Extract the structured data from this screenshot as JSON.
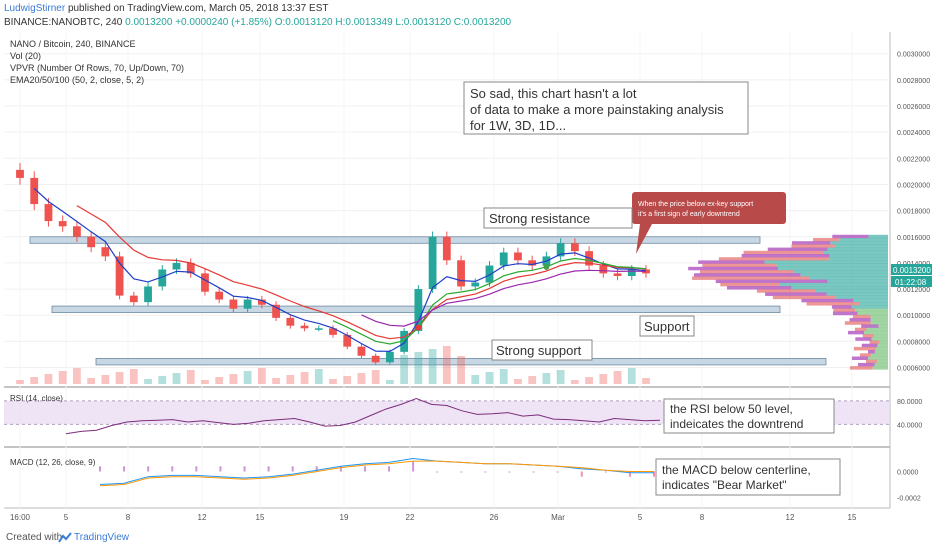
{
  "header": {
    "author": "LudwigStirner",
    "published": "published on TradingView.com, March 05, 2018 13:37 EST",
    "symbol": "BINANCE:NANOBTC, 240",
    "price": "0.0013200",
    "change": "+0.0000240 (+1.85%)",
    "ohlc": "O:0.0013120 H:0.0013349 L:0.0013120 C:0.0013200"
  },
  "legend": {
    "title": "NANO / Bitcoin, 240, BINANCE",
    "vol": "Vol (20)",
    "vpvr": "VPVR (Number Of Rows, 70, Up/Down, 70)",
    "ema": "EMA20/50/100 (50, 2, close, 5, 2)"
  },
  "annotations": {
    "note_line1": "So sad, this chart hasn't a lot",
    "note_line2": "of data to make a more painstaking analysis",
    "note_line3": "for 1W, 3D, 1D...",
    "callout_line1": "When the price below ex-key support",
    "callout_line2": "it's a first sign of early downtrend",
    "strong_resistance": "Strong resistance",
    "support": "Support",
    "strong_support": "Strong support",
    "rsi_note_line1": "the RSI below 50 level,",
    "rsi_note_line2": "indeicates the downtrend",
    "macd_note_line1": "the MACD below centerline,",
    "macd_note_line2": "indicates \"Bear Market\""
  },
  "panels": {
    "rsi_label": "RSI (14, close)",
    "macd_label": "MACD (12, 26, close, 9)"
  },
  "price_badges": {
    "current": "0.0013200",
    "timer": "01:22:08"
  },
  "footer": {
    "created": "Created with",
    "brand": "TradingView"
  },
  "colors": {
    "up": "#26a69a",
    "down": "#ef5350",
    "ema_fast": "#1e3ec8",
    "ema_mid": "#2aa830",
    "ema_slow": "#e53935",
    "ema_long": "#9c27b0",
    "macd": "#2196f3",
    "signal": "#ff9800",
    "rsi": "#7b2d7b",
    "zone": "#c7d7e4",
    "callout": "#b94a4a"
  },
  "chart_data": {
    "type": "line",
    "title": "NANO / Bitcoin, 240, BINANCE",
    "x_ticks": [
      "16:00",
      "5",
      "8",
      "12",
      "15",
      "19",
      "22",
      "26",
      "Mar",
      "5",
      "8",
      "12",
      "15"
    ],
    "price_axis": {
      "ticks": [
        "0.0030000",
        "0.0028000",
        "0.0026000",
        "0.0024000",
        "0.0022000",
        "0.0020000",
        "0.0018000",
        "0.0016000",
        "0.0014000",
        "0.0012000",
        "0.0010000",
        "0.0008000",
        "0.0006000"
      ],
      "ylim": [
        0.00052,
        0.00312
      ]
    },
    "close_prices": [
      0.00205,
      0.00185,
      0.00172,
      0.00168,
      0.0016,
      0.00152,
      0.00145,
      0.00115,
      0.0011,
      0.00122,
      0.00135,
      0.0014,
      0.00132,
      0.00118,
      0.00112,
      0.00105,
      0.00112,
      0.00108,
      0.00098,
      0.00092,
      0.0009,
      0.0009,
      0.00085,
      0.00076,
      0.00069,
      0.00064,
      0.00072,
      0.00088,
      0.0012,
      0.0016,
      0.00142,
      0.00122,
      0.00125,
      0.00138,
      0.00148,
      0.00142,
      0.00138,
      0.00145,
      0.00155,
      0.00149,
      0.00138,
      0.00132,
      0.0013,
      0.00135,
      0.00132
    ],
    "zones": [
      {
        "name": "Strong resistance",
        "low": 0.00155,
        "high": 0.0016
      },
      {
        "name": "Support",
        "low": 0.00102,
        "high": 0.00107
      },
      {
        "name": "Strong support",
        "low": 0.00062,
        "high": 0.00067
      }
    ],
    "rsi": {
      "ticks": [
        "80.0000",
        "40.0000"
      ],
      "ylim": [
        10,
        95
      ],
      "values": [
        24,
        28,
        30,
        38,
        44,
        46,
        47,
        48,
        44,
        46,
        43,
        40,
        42,
        46,
        48,
        50,
        44,
        37,
        38,
        44,
        55,
        66,
        74,
        84,
        74,
        72,
        63,
        57,
        58,
        60,
        54,
        56,
        49,
        48,
        46,
        44,
        50,
        48,
        46,
        47
      ]
    },
    "macd": {
      "ticks": [
        "0.0000",
        "-0.0002"
      ],
      "ylim": [
        -0.00025,
        0.00015
      ],
      "macd": [
        -0.0001,
        -9e-05,
        -4e-05,
        -3e-05,
        -3e-05,
        -4e-05,
        -5e-05,
        -4e-05,
        -2e-05,
        1e-05,
        4e-05,
        6e-05,
        7e-05,
        0.0001,
        8e-05,
        7e-05,
        6e-05,
        6e-05,
        5e-05,
        4e-05,
        2e-05,
        1e-05,
        -1e-05,
        -1e-05
      ],
      "signal": [
        -0.00011,
        -0.0001,
        -5e-05,
        -4e-05,
        -4e-05,
        -5e-05,
        -6e-05,
        -5e-05,
        -3e-05,
        0.0,
        3e-05,
        5e-05,
        6e-05,
        8e-05,
        8e-05,
        7e-05,
        6e-05,
        6e-05,
        5e-05,
        4e-05,
        3e-05,
        1e-05,
        0.0,
        0.0
      ]
    }
  }
}
